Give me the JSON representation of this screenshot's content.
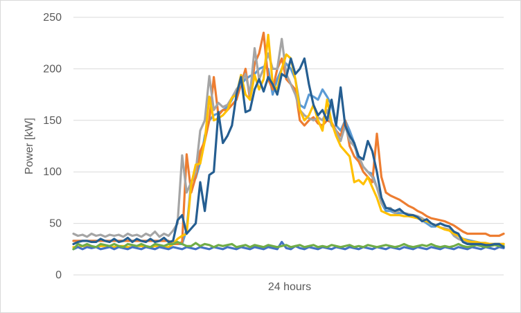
{
  "chart_data": {
    "type": "line",
    "title": "",
    "xlabel": "24 hours",
    "ylabel": "Power [kW]",
    "ylim": [
      0,
      250
    ],
    "yticks": [
      "0",
      "50",
      "100",
      "150",
      "200",
      "250"
    ],
    "grid": "horizontal",
    "legend": "none",
    "x_points": 96,
    "series": [
      {
        "color": "#5B9BD5",
        "values": [
          33,
          33,
          33,
          33,
          33,
          33,
          33,
          33,
          33,
          33,
          33,
          33,
          33,
          33,
          33,
          33,
          33,
          33,
          33,
          33,
          33,
          33,
          30,
          30,
          30,
          44,
          91,
          94,
          109,
          135,
          150,
          155,
          157,
          160,
          163,
          170,
          180,
          185,
          190,
          193,
          195,
          200,
          202,
          200,
          175,
          190,
          200,
          205,
          200,
          190,
          165,
          162,
          175,
          173,
          170,
          180,
          173,
          165,
          145,
          140,
          150,
          140,
          128,
          110,
          105,
          100,
          98,
          85,
          70,
          62,
          62,
          60,
          60,
          60,
          59,
          57,
          55,
          53,
          50,
          47,
          47,
          50,
          48,
          47,
          42,
          38,
          35,
          34,
          33,
          32,
          31,
          31,
          30,
          30,
          30,
          30
        ]
      },
      {
        "color": "#ED7D31",
        "values": [
          33,
          33,
          33,
          33,
          33,
          33,
          33,
          33,
          33,
          33,
          33,
          33,
          33,
          33,
          33,
          33,
          33,
          33,
          33,
          33,
          33,
          33,
          30,
          30,
          32,
          117,
          80,
          95,
          120,
          130,
          150,
          192,
          155,
          160,
          160,
          165,
          170,
          185,
          200,
          170,
          205,
          215,
          235,
          190,
          180,
          200,
          210,
          190,
          185,
          180,
          150,
          145,
          150,
          153,
          147,
          145,
          150,
          148,
          140,
          135,
          150,
          125,
          115,
          110,
          100,
          95,
          90,
          137,
          95,
          80,
          77,
          75,
          73,
          70,
          67,
          65,
          62,
          60,
          57,
          55,
          54,
          53,
          52,
          50,
          48,
          45,
          42,
          40,
          40,
          40,
          40,
          40,
          38,
          38,
          38,
          40
        ]
      },
      {
        "color": "#A5A5A5",
        "values": [
          40,
          38,
          39,
          37,
          40,
          38,
          39,
          37,
          39,
          38,
          39,
          37,
          40,
          38,
          39,
          37,
          40,
          38,
          42,
          37,
          40,
          38,
          43,
          50,
          116,
          80,
          90,
          100,
          140,
          150,
          193,
          160,
          167,
          163,
          165,
          172,
          180,
          186,
          195,
          175,
          220,
          190,
          200,
          215,
          200,
          200,
          229,
          195,
          185,
          175,
          160,
          155,
          152,
          150,
          153,
          150,
          160,
          145,
          140,
          130,
          145,
          130,
          125,
          115,
          105,
          100,
          95,
          85,
          70,
          65,
          65,
          60,
          63,
          60,
          59,
          58,
          57,
          55,
          52,
          50,
          48,
          46,
          45,
          44,
          38,
          35,
          33,
          32,
          30,
          30,
          30,
          30,
          30,
          30,
          30,
          30
        ]
      },
      {
        "color": "#FFC000",
        "values": [
          27,
          27,
          28,
          28,
          27,
          27,
          28,
          28,
          27,
          27,
          28,
          28,
          27,
          27,
          28,
          28,
          27,
          27,
          28,
          28,
          27,
          27,
          30,
          35,
          38,
          40,
          88,
          107,
          108,
          130,
          173,
          150,
          152,
          155,
          160,
          172,
          175,
          194,
          175,
          170,
          194,
          180,
          190,
          233,
          185,
          180,
          200,
          214,
          210,
          190,
          160,
          150,
          155,
          165,
          150,
          140,
          170,
          148,
          135,
          125,
          120,
          115,
          90,
          92,
          88,
          95,
          85,
          75,
          62,
          60,
          58,
          58,
          58,
          57,
          57,
          56,
          55,
          53,
          52,
          50,
          48,
          46,
          44,
          43,
          40,
          38,
          35,
          33,
          32,
          32,
          31,
          31,
          30,
          30,
          30,
          30
        ]
      },
      {
        "color": "#4472C4",
        "values": [
          25,
          27,
          25,
          27,
          26,
          27,
          25,
          26,
          27,
          25,
          27,
          26,
          25,
          27,
          26,
          25,
          27,
          26,
          25,
          27,
          26,
          25,
          27,
          26,
          25,
          27,
          26,
          25,
          27,
          26,
          25,
          27,
          26,
          25,
          27,
          26,
          25,
          27,
          26,
          25,
          27,
          26,
          25,
          27,
          26,
          25,
          32,
          26,
          25,
          28,
          26,
          25,
          27,
          26,
          25,
          27,
          26,
          25,
          27,
          26,
          25,
          27,
          26,
          25,
          27,
          26,
          25,
          27,
          26,
          25,
          27,
          26,
          25,
          27,
          26,
          25,
          27,
          26,
          25,
          27,
          26,
          25,
          27,
          26,
          25,
          27,
          26,
          25,
          27,
          26,
          25,
          27,
          26,
          25,
          27,
          26
        ]
      },
      {
        "color": "#70AD47",
        "values": [
          25,
          30,
          28,
          30,
          28,
          27,
          30,
          29,
          28,
          30,
          28,
          27,
          30,
          29,
          28,
          30,
          28,
          27,
          30,
          29,
          28,
          30,
          30,
          32,
          30,
          28,
          28,
          31,
          28,
          30,
          29,
          27,
          29,
          28,
          29,
          30,
          27,
          28,
          29,
          27,
          29,
          28,
          27,
          29,
          28,
          27,
          28,
          29,
          27,
          28,
          29,
          27,
          28,
          29,
          27,
          28,
          27,
          29,
          28,
          27,
          28,
          29,
          27,
          28,
          27,
          29,
          28,
          27,
          28,
          29,
          28,
          27,
          28,
          30,
          28,
          27,
          28,
          29,
          28,
          30,
          28,
          27,
          28,
          27,
          28,
          30,
          28,
          27,
          28,
          29,
          28,
          27,
          28,
          29,
          28,
          28
        ]
      },
      {
        "color": "#255E91",
        "values": [
          30,
          32,
          33,
          33,
          32,
          32,
          35,
          33,
          32,
          35,
          32,
          33,
          36,
          32,
          35,
          33,
          32,
          35,
          32,
          33,
          36,
          32,
          33,
          53,
          58,
          40,
          45,
          50,
          90,
          62,
          97,
          100,
          158,
          128,
          135,
          145,
          175,
          192,
          158,
          160,
          180,
          190,
          178,
          192,
          185,
          175,
          195,
          192,
          210,
          195,
          200,
          210,
          185,
          165,
          155,
          160,
          150,
          170,
          145,
          182,
          145,
          135,
          128,
          115,
          112,
          130,
          120,
          100,
          75,
          65,
          64,
          62,
          64,
          60,
          58,
          58,
          56,
          52,
          54,
          50,
          48,
          50,
          48,
          47,
          42,
          40,
          32,
          30,
          30,
          30,
          30,
          29,
          29,
          30,
          30,
          27
        ]
      }
    ]
  }
}
